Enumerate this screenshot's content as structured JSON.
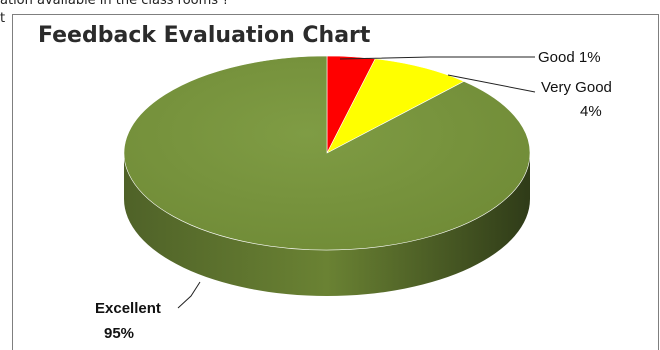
{
  "document": {
    "cut_text": "ation available in the class rooms ?",
    "margin_letter": "t"
  },
  "chart_data": {
    "type": "pie",
    "title": "Feedback Evaluation Chart",
    "slices": [
      {
        "label": "Good",
        "value": 1,
        "display": "1%",
        "color": "#ff0000"
      },
      {
        "label": "Very Good",
        "value": 4,
        "display": "4%",
        "color": "#ffff00"
      },
      {
        "label": "Excellent",
        "value": 95,
        "display": "95%",
        "color": "#77933c"
      }
    ],
    "style": "3d",
    "legend": "none"
  }
}
